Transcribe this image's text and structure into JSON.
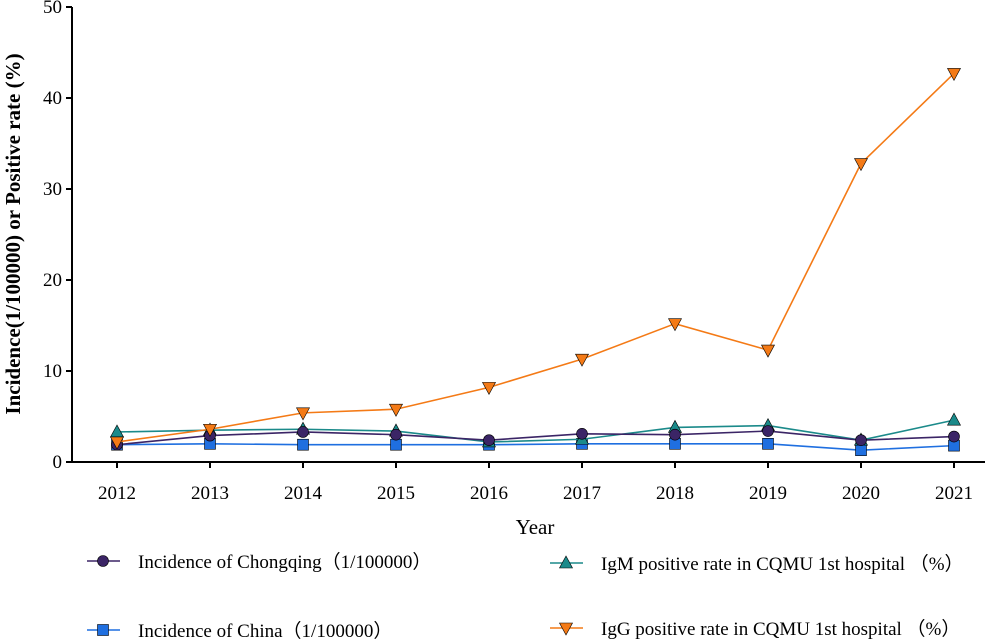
{
  "chart_data": {
    "type": "line",
    "title": "",
    "xlabel": "Year",
    "ylabel": "Incidence(1/100000) or Positive rate (%)",
    "categories": [
      "2012",
      "2013",
      "2014",
      "2015",
      "2016",
      "2017",
      "2018",
      "2019",
      "2020",
      "2021"
    ],
    "ylim": [
      0,
      50
    ],
    "yticks": [
      "0",
      "10",
      "20",
      "30",
      "40",
      "50"
    ],
    "grid": false,
    "legend_position": "bottom",
    "series": [
      {
        "name": "Incidence of Chongqing（1/100000）",
        "marker": "circle",
        "color": "#3b2566",
        "values": [
          1.9,
          2.9,
          3.3,
          3.0,
          2.4,
          3.1,
          3.0,
          3.4,
          2.4,
          2.8
        ]
      },
      {
        "name": "IgM positive rate in CQMU 1st hospital （%）",
        "marker": "triangle-up",
        "color": "#1b8a8a",
        "values": [
          3.3,
          3.5,
          3.6,
          3.4,
          2.2,
          2.5,
          3.8,
          4.0,
          2.4,
          4.6
        ]
      },
      {
        "name": "Incidence of China（1/100000）",
        "marker": "square",
        "color": "#1f6fe0",
        "values": [
          1.9,
          2.0,
          1.9,
          1.9,
          1.9,
          2.0,
          2.0,
          2.0,
          1.3,
          1.8
        ]
      },
      {
        "name": "IgG positive rate in CQMU 1st hospital （%）",
        "marker": "triangle-down",
        "color": "#f47a16",
        "values": [
          2.2,
          3.6,
          5.4,
          5.8,
          8.2,
          11.3,
          15.2,
          12.3,
          32.8,
          42.7
        ]
      }
    ]
  }
}
